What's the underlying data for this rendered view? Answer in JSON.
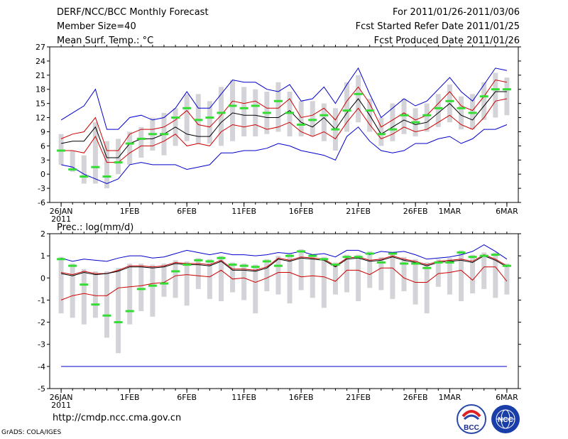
{
  "header": {
    "left": [
      "DERF/NCC/BCC Monthly Forecast",
      "Member Size=40",
      "Mean Surf. Temp.: °C"
    ],
    "right": [
      "For 2011/01/26-2011/03/06",
      "Fcst Started Refer Date 2011/01/25",
      "Fcst Produced Date 2011/01/26"
    ]
  },
  "footer": {
    "url": "http://cmdp.ncc.cma.gov.cn",
    "credit": "GrADS: COLA/IGES"
  },
  "logos": {
    "bcc": "BCC",
    "ncc": "NCC"
  },
  "colors": {
    "max": "#0000cc",
    "min": "#0000cc",
    "band": "#cc0000",
    "mean": "#000000",
    "median": "#33dd33",
    "box": "#d4d4d8"
  },
  "chart_data": [
    {
      "type": "line",
      "title": "Mean Surf. Temp.: °C",
      "ylim": [
        -6,
        27
      ],
      "yticks": [
        -6,
        -3,
        0,
        3,
        6,
        9,
        12,
        15,
        18,
        21,
        24,
        27
      ],
      "xtick_labels": [
        {
          "day": 0,
          "label": "26JAN"
        },
        {
          "day": 6,
          "label": "1FEB"
        },
        {
          "day": 11,
          "label": "6FEB"
        },
        {
          "day": 16,
          "label": "11FEB"
        },
        {
          "day": 21,
          "label": "16FEB"
        },
        {
          "day": 26,
          "label": "21FEB"
        },
        {
          "day": 31,
          "label": "26FEB"
        },
        {
          "day": 34,
          "label": "1MAR"
        },
        {
          "day": 39,
          "label": "6MAR"
        }
      ],
      "year_label": "2011",
      "series": [
        {
          "name": "max",
          "values": [
            11.5,
            13,
            14.5,
            18,
            9.5,
            9.5,
            12,
            12.5,
            11.5,
            12,
            14,
            17.5,
            14,
            14,
            17,
            20,
            19.5,
            19.5,
            18,
            17.5,
            19,
            15.5,
            16,
            18.5,
            15,
            19,
            22.5,
            17,
            12,
            14,
            16,
            14.5,
            15.5,
            18,
            20.5,
            17.5,
            15.5,
            19,
            22.5,
            22
          ]
        },
        {
          "name": "upper",
          "values": [
            7.5,
            8.5,
            9,
            12,
            5,
            5,
            8.5,
            9.5,
            9.5,
            10,
            11.5,
            13.5,
            10.5,
            10,
            12.5,
            15.5,
            15,
            15.5,
            14,
            14,
            16,
            12,
            12.5,
            14,
            11.5,
            15.5,
            18.5,
            15,
            10,
            11.5,
            13,
            11.5,
            12.5,
            15,
            17.5,
            14.5,
            13.5,
            16.5,
            20,
            19.5
          ]
        },
        {
          "name": "mean",
          "values": [
            6.5,
            7,
            7,
            10,
            3.5,
            3.5,
            6.5,
            7.5,
            7.5,
            8.5,
            10,
            8.5,
            8,
            8,
            11,
            13,
            12.5,
            12.5,
            12,
            12,
            13.5,
            11,
            10,
            12,
            9.5,
            13,
            16,
            12.5,
            8.5,
            10,
            11.5,
            10.5,
            11,
            13,
            15,
            12.5,
            11.5,
            14.5,
            17.5,
            17.5
          ]
        },
        {
          "name": "lower",
          "values": [
            5,
            5,
            4.5,
            8,
            2.5,
            2.5,
            4.5,
            6,
            6,
            7,
            8.5,
            6,
            6.5,
            6,
            9,
            10.5,
            10,
            10.5,
            9.5,
            10,
            11,
            9,
            8,
            9,
            7.5,
            11,
            14,
            10.5,
            7.5,
            8.5,
            10,
            9,
            9.5,
            11,
            12.5,
            10.5,
            9.5,
            12,
            15.5,
            16
          ]
        },
        {
          "name": "min",
          "values": [
            2,
            1.5,
            0,
            -1,
            -2,
            -1,
            2,
            2.5,
            2,
            2,
            2,
            1,
            1.5,
            2,
            4.5,
            4.5,
            5,
            5,
            5.5,
            6.5,
            6,
            5,
            4.5,
            4,
            3,
            8,
            10,
            7,
            5,
            4.5,
            5,
            6.5,
            6.5,
            7.5,
            8,
            6.5,
            7.5,
            9.5,
            9.5,
            10.5
          ]
        }
      ],
      "median": [
        5,
        1,
        -0.5,
        1.5,
        -0.5,
        2.5,
        6.5,
        7.5,
        8.5,
        8.5,
        12,
        14,
        11.5,
        12,
        13,
        14.5,
        14,
        14.5,
        13,
        15.5,
        13,
        10.5,
        11.5,
        12.5,
        9.5,
        13.5,
        17,
        13.5,
        8.5,
        9.5,
        12.5,
        11,
        12.5,
        14,
        15.5,
        14,
        13,
        16.5,
        18,
        18
      ],
      "boxes": [
        [
          2,
          8.5
        ],
        [
          0.5,
          5
        ],
        [
          -2,
          4
        ],
        [
          -2,
          11
        ],
        [
          -3,
          7
        ],
        [
          0,
          7.5
        ],
        [
          2,
          9
        ],
        [
          3.5,
          10
        ],
        [
          5,
          12
        ],
        [
          4,
          13
        ],
        [
          6,
          14
        ],
        [
          7,
          17
        ],
        [
          6.5,
          17
        ],
        [
          6.5,
          15.5
        ],
        [
          6,
          18.5
        ],
        [
          7,
          20
        ],
        [
          8,
          18.5
        ],
        [
          8,
          18
        ],
        [
          8.5,
          17.5
        ],
        [
          9,
          19.5
        ],
        [
          8,
          17.5
        ],
        [
          8,
          15.5
        ],
        [
          8,
          15.5
        ],
        [
          7,
          15
        ],
        [
          5,
          14
        ],
        [
          9,
          19.5
        ],
        [
          11,
          21
        ],
        [
          9,
          16
        ],
        [
          6,
          12
        ],
        [
          7,
          15
        ],
        [
          8.5,
          16
        ],
        [
          8,
          14
        ],
        [
          9,
          15
        ],
        [
          10,
          17
        ],
        [
          11,
          19
        ],
        [
          9.5,
          16.5
        ],
        [
          9.5,
          17
        ],
        [
          11.5,
          19.5
        ],
        [
          12,
          21.5
        ],
        [
          12.5,
          20.5
        ]
      ]
    },
    {
      "type": "line",
      "title": "Prec.: log(mm/d)",
      "ylim": [
        -5,
        2
      ],
      "yticks": [
        -5,
        -4,
        -3,
        -2,
        -1,
        0,
        1,
        2
      ],
      "xtick_labels": [
        {
          "day": 0,
          "label": "26JAN"
        },
        {
          "day": 6,
          "label": "1FEB"
        },
        {
          "day": 11,
          "label": "6FEB"
        },
        {
          "day": 16,
          "label": "11FEB"
        },
        {
          "day": 21,
          "label": "16FEB"
        },
        {
          "day": 26,
          "label": "21FEB"
        },
        {
          "day": 31,
          "label": "26FEB"
        },
        {
          "day": 34,
          "label": "1MAR"
        },
        {
          "day": 39,
          "label": "6MAR"
        }
      ],
      "year_label": "2011",
      "series": [
        {
          "name": "max",
          "values": [
            0.9,
            0.75,
            0.85,
            0.8,
            0.75,
            0.9,
            1,
            1,
            0.9,
            0.95,
            1.1,
            1.25,
            1.15,
            1.05,
            1.15,
            1.05,
            1.05,
            1,
            1.05,
            1.15,
            1.1,
            1.2,
            1.05,
            1.1,
            0.95,
            1.25,
            1.25,
            1.05,
            1.2,
            1.15,
            1.2,
            1.05,
            0.85,
            0.9,
            0.95,
            1.05,
            1.2,
            1.5,
            1.2,
            0.85
          ]
        },
        {
          "name": "upper",
          "values": [
            0.25,
            0.15,
            0.3,
            0.2,
            0.2,
            0.35,
            0.55,
            0.55,
            0.5,
            0.55,
            0.7,
            0.65,
            0.65,
            0.6,
            0.8,
            0.4,
            0.4,
            0.35,
            0.5,
            0.9,
            0.8,
            0.95,
            0.9,
            0.85,
            0.55,
            0.9,
            0.95,
            0.8,
            0.85,
            1,
            0.85,
            0.75,
            0.6,
            0.75,
            0.8,
            0.85,
            0.75,
            1.05,
            0.85,
            0.55
          ]
        },
        {
          "name": "mean",
          "values": [
            0.2,
            0.1,
            0.25,
            0.15,
            0.2,
            0.3,
            0.5,
            0.5,
            0.45,
            0.5,
            0.65,
            0.6,
            0.6,
            0.55,
            0.75,
            0.35,
            0.35,
            0.3,
            0.45,
            0.85,
            0.75,
            0.9,
            0.85,
            0.8,
            0.5,
            0.85,
            0.9,
            0.75,
            0.8,
            0.95,
            0.8,
            0.7,
            0.55,
            0.7,
            0.75,
            0.8,
            0.7,
            1,
            0.8,
            0.5
          ]
        },
        {
          "name": "lower",
          "values": [
            -1,
            -0.8,
            -0.7,
            -0.8,
            -0.8,
            -0.45,
            -0.4,
            -0.35,
            -0.25,
            -0.2,
            0.1,
            0.15,
            0.1,
            0.05,
            0.35,
            -0.05,
            0,
            -0.2,
            0,
            0.25,
            0.25,
            0.05,
            0.1,
            0.05,
            -0.15,
            0.35,
            0.35,
            0.15,
            0.45,
            0.45,
            0,
            -0.2,
            -0.2,
            0.2,
            0.25,
            0.35,
            -0.1,
            0.5,
            0.5,
            -0.15
          ]
        },
        {
          "name": "min",
          "values": [
            -4,
            -4,
            -4,
            -4,
            -4,
            -4,
            -4,
            -4,
            -4,
            -4,
            -4,
            -4,
            -4,
            -4,
            -4,
            -4,
            -4,
            -4,
            -4,
            -4,
            -4,
            -4,
            -4,
            -4,
            -4,
            -4,
            -4,
            -4,
            -4,
            -4,
            -4,
            -4,
            -4,
            -4,
            -4,
            -4,
            -4,
            -4,
            -4,
            -4
          ]
        }
      ],
      "median": [
        0.85,
        0.55,
        -0.3,
        -1.2,
        -1.7,
        -2,
        -1.5,
        -0.5,
        -0.35,
        -0.25,
        0.3,
        0.6,
        0.8,
        0.75,
        0.9,
        0.6,
        0.55,
        0.5,
        0.75,
        0.55,
        1,
        1.2,
        1,
        0.85,
        0.6,
        0.95,
        0.95,
        1.1,
        0.7,
        1.1,
        0.65,
        0.65,
        0.45,
        0.7,
        0.7,
        1.15,
        0.95,
        1,
        1.05,
        0.55
      ]
    }
  ]
}
